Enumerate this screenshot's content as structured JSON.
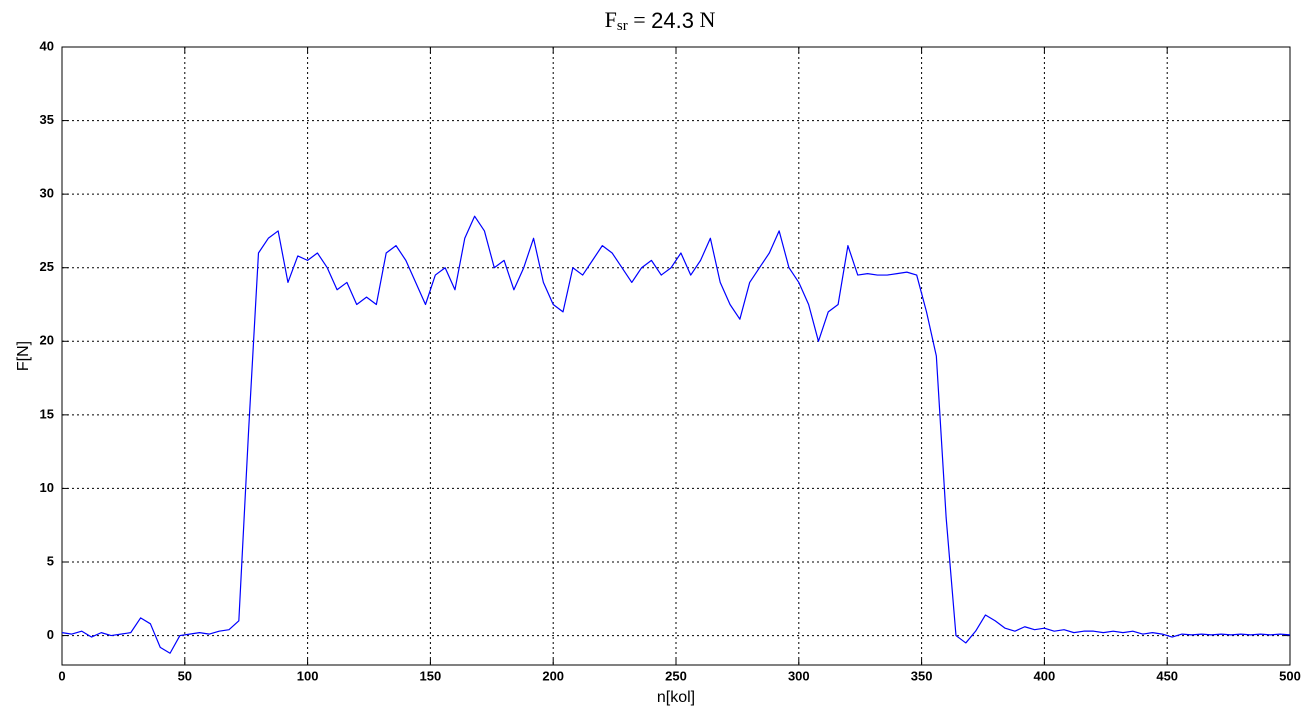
{
  "chart_data": {
    "type": "line",
    "title_parts": [
      "F",
      "sr",
      " = ",
      "24.3",
      " N"
    ],
    "x_label": "n[kol]",
    "y_label": "F[N]",
    "xlim": [
      0,
      500
    ],
    "xticks": [
      0,
      50,
      100,
      150,
      200,
      250,
      300,
      350,
      400,
      450,
      500
    ],
    "ylim": [
      -2,
      40
    ],
    "yticks": [
      0,
      5,
      10,
      15,
      20,
      25,
      30,
      35,
      40
    ],
    "grid": true,
    "series": [
      {
        "color": "#0000ff",
        "x": [
          0,
          4,
          8,
          12,
          16,
          20,
          24,
          28,
          32,
          36,
          40,
          44,
          48,
          52,
          56,
          60,
          64,
          68,
          72,
          76,
          80,
          84,
          88,
          92,
          96,
          100,
          104,
          108,
          112,
          116,
          120,
          124,
          128,
          132,
          136,
          140,
          144,
          148,
          152,
          156,
          160,
          164,
          168,
          172,
          176,
          180,
          184,
          188,
          192,
          196,
          200,
          204,
          208,
          212,
          216,
          220,
          224,
          228,
          232,
          236,
          240,
          244,
          248,
          252,
          256,
          260,
          264,
          268,
          272,
          276,
          280,
          284,
          288,
          292,
          296,
          300,
          304,
          308,
          312,
          316,
          320,
          324,
          328,
          332,
          336,
          340,
          344,
          348,
          352,
          356,
          360,
          364,
          368,
          372,
          376,
          380,
          384,
          388,
          392,
          396,
          400,
          404,
          408,
          412,
          416,
          420,
          424,
          428,
          432,
          436,
          440,
          444,
          448,
          452,
          456,
          460,
          464,
          468,
          472,
          476,
          480,
          484,
          488,
          492,
          496,
          500
        ],
        "values": [
          0.2,
          0.1,
          0.3,
          -0.1,
          0.2,
          0,
          0.1,
          0.2,
          1.2,
          0.8,
          -0.8,
          -1.2,
          0,
          0.1,
          0.2,
          0.1,
          0.3,
          0.4,
          1.0,
          14,
          26,
          27,
          27.5,
          24,
          25.8,
          25.5,
          26,
          25,
          23.5,
          24,
          22.5,
          23,
          22.5,
          26,
          26.5,
          25.5,
          24,
          22.5,
          24.5,
          25,
          23.5,
          27,
          28.5,
          27.5,
          25,
          25.5,
          23.5,
          25,
          27,
          24,
          22.5,
          22,
          25,
          24.5,
          25.5,
          26.5,
          26,
          25,
          24,
          25,
          25.5,
          24.5,
          25,
          26,
          24.5,
          25.5,
          27,
          24,
          22.5,
          21.5,
          24,
          25,
          26,
          27.5,
          25,
          24,
          22.5,
          20,
          22,
          22.5,
          26.5,
          24.5,
          24.6,
          24.5,
          24.5,
          24.6,
          24.7,
          24.5,
          22,
          19,
          8,
          0,
          -0.5,
          0.3,
          1.4,
          1,
          0.5,
          0.3,
          0.6,
          0.4,
          0.5,
          0.3,
          0.4,
          0.2,
          0.3,
          0.3,
          0.2,
          0.3,
          0.2,
          0.3,
          0.1,
          0.2,
          0.1,
          -0.1,
          0.1,
          0.05,
          0.1,
          0.05,
          0.1,
          0.05,
          0.1,
          0.05,
          0.1,
          0.05,
          0.1,
          0.05
        ]
      }
    ]
  }
}
